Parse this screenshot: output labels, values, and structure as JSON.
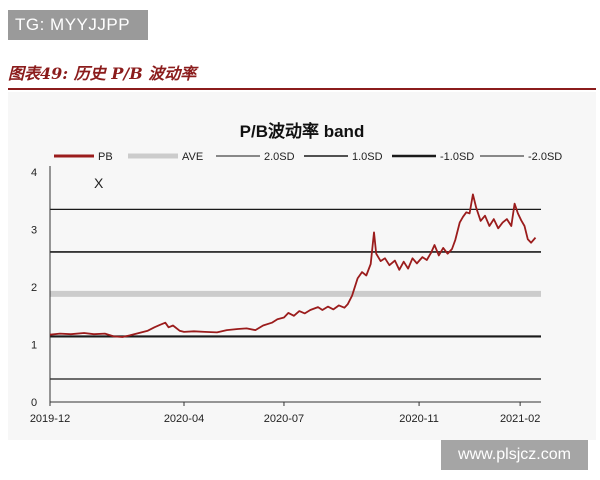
{
  "badge": {
    "text": "TG: MYYJJPP"
  },
  "figure": {
    "title": "图表49: 历史 P/B 波动率"
  },
  "watermark": {
    "text": "www.plsjcz.com"
  },
  "colors": {
    "pb": "#9b1c1c",
    "ave": "#cccccc",
    "sd_2_plus": "#1a1a1a",
    "sd_1_plus": "#1a1a1a",
    "sd_1_minus": "#1a1a1a",
    "sd_2_minus": "#1a1a1a",
    "accent": "#8b1c1c"
  },
  "chart_data": {
    "type": "line",
    "title": "P/B波动率 band",
    "xlabel": "",
    "ylabel": "",
    "ylim": [
      0,
      4
    ],
    "yticks": [
      0,
      1,
      2,
      3,
      4
    ],
    "xlim": [
      "2019-12-01",
      "2021-02-20"
    ],
    "xticks": [
      "2019-12",
      "2020-04",
      "2020-07",
      "2020-11",
      "2021-02"
    ],
    "x_tick_dates": [
      "2019-12-01",
      "2020-04-01",
      "2020-07-01",
      "2020-11-01",
      "2021-02-01"
    ],
    "annotation": "X",
    "legend_position": "top",
    "legend": [
      "PB",
      "AVE",
      "2.0SD",
      "1.0SD",
      "-1.0SD",
      "-2.0SD"
    ],
    "bands": [
      {
        "name": "AVE",
        "value": 1.88
      },
      {
        "name": "2.0SD",
        "value": 3.35
      },
      {
        "name": "1.0SD",
        "value": 2.61
      },
      {
        "name": "-1.0SD",
        "value": 1.14
      },
      {
        "name": "-2.0SD",
        "value": 0.4
      }
    ],
    "series": [
      {
        "name": "PB",
        "points": [
          [
            "2019-12-01",
            1.17
          ],
          [
            "2019-12-10",
            1.19
          ],
          [
            "2019-12-20",
            1.18
          ],
          [
            "2020-01-01",
            1.2
          ],
          [
            "2020-01-10",
            1.18
          ],
          [
            "2020-01-20",
            1.19
          ],
          [
            "2020-01-28",
            1.14
          ],
          [
            "2020-02-05",
            1.13
          ],
          [
            "2020-02-12",
            1.16
          ],
          [
            "2020-02-20",
            1.2
          ],
          [
            "2020-02-28",
            1.24
          ],
          [
            "2020-03-05",
            1.3
          ],
          [
            "2020-03-10",
            1.34
          ],
          [
            "2020-03-15",
            1.38
          ],
          [
            "2020-03-18",
            1.3
          ],
          [
            "2020-03-22",
            1.33
          ],
          [
            "2020-03-28",
            1.24
          ],
          [
            "2020-04-01",
            1.22
          ],
          [
            "2020-04-10",
            1.23
          ],
          [
            "2020-04-20",
            1.22
          ],
          [
            "2020-05-01",
            1.21
          ],
          [
            "2020-05-10",
            1.25
          ],
          [
            "2020-05-20",
            1.27
          ],
          [
            "2020-05-28",
            1.28
          ],
          [
            "2020-06-05",
            1.25
          ],
          [
            "2020-06-12",
            1.33
          ],
          [
            "2020-06-20",
            1.38
          ],
          [
            "2020-06-25",
            1.44
          ],
          [
            "2020-07-01",
            1.47
          ],
          [
            "2020-07-05",
            1.55
          ],
          [
            "2020-07-10",
            1.5
          ],
          [
            "2020-07-15",
            1.58
          ],
          [
            "2020-07-20",
            1.54
          ],
          [
            "2020-07-25",
            1.6
          ],
          [
            "2020-08-01",
            1.65
          ],
          [
            "2020-08-05",
            1.6
          ],
          [
            "2020-08-10",
            1.66
          ],
          [
            "2020-08-15",
            1.61
          ],
          [
            "2020-08-20",
            1.68
          ],
          [
            "2020-08-25",
            1.64
          ],
          [
            "2020-08-28",
            1.7
          ],
          [
            "2020-09-01",
            1.85
          ],
          [
            "2020-09-03",
            1.97
          ],
          [
            "2020-09-06",
            2.15
          ],
          [
            "2020-09-10",
            2.26
          ],
          [
            "2020-09-14",
            2.2
          ],
          [
            "2020-09-18",
            2.4
          ],
          [
            "2020-09-21",
            2.95
          ],
          [
            "2020-09-23",
            2.58
          ],
          [
            "2020-09-27",
            2.45
          ],
          [
            "2020-10-01",
            2.5
          ],
          [
            "2020-10-05",
            2.38
          ],
          [
            "2020-10-10",
            2.46
          ],
          [
            "2020-10-14",
            2.3
          ],
          [
            "2020-10-18",
            2.44
          ],
          [
            "2020-10-22",
            2.32
          ],
          [
            "2020-10-26",
            2.5
          ],
          [
            "2020-10-30",
            2.41
          ],
          [
            "2020-11-04",
            2.52
          ],
          [
            "2020-11-08",
            2.47
          ],
          [
            "2020-11-12",
            2.6
          ],
          [
            "2020-11-15",
            2.73
          ],
          [
            "2020-11-19",
            2.55
          ],
          [
            "2020-11-23",
            2.68
          ],
          [
            "2020-11-27",
            2.58
          ],
          [
            "2020-12-01",
            2.66
          ],
          [
            "2020-12-04",
            2.82
          ],
          [
            "2020-12-08",
            3.12
          ],
          [
            "2020-12-11",
            3.22
          ],
          [
            "2020-12-14",
            3.3
          ],
          [
            "2020-12-17",
            3.28
          ],
          [
            "2020-12-20",
            3.61
          ],
          [
            "2020-12-23",
            3.38
          ],
          [
            "2020-12-27",
            3.15
          ],
          [
            "2020-12-31",
            3.24
          ],
          [
            "2021-01-04",
            3.06
          ],
          [
            "2021-01-08",
            3.18
          ],
          [
            "2021-01-12",
            3.02
          ],
          [
            "2021-01-16",
            3.12
          ],
          [
            "2021-01-20",
            3.18
          ],
          [
            "2021-01-24",
            3.06
          ],
          [
            "2021-01-27",
            3.45
          ],
          [
            "2021-01-30",
            3.28
          ],
          [
            "2021-02-02",
            3.16
          ],
          [
            "2021-02-05",
            3.06
          ],
          [
            "2021-02-08",
            2.83
          ],
          [
            "2021-02-11",
            2.77
          ],
          [
            "2021-02-15",
            2.86
          ]
        ]
      }
    ]
  }
}
